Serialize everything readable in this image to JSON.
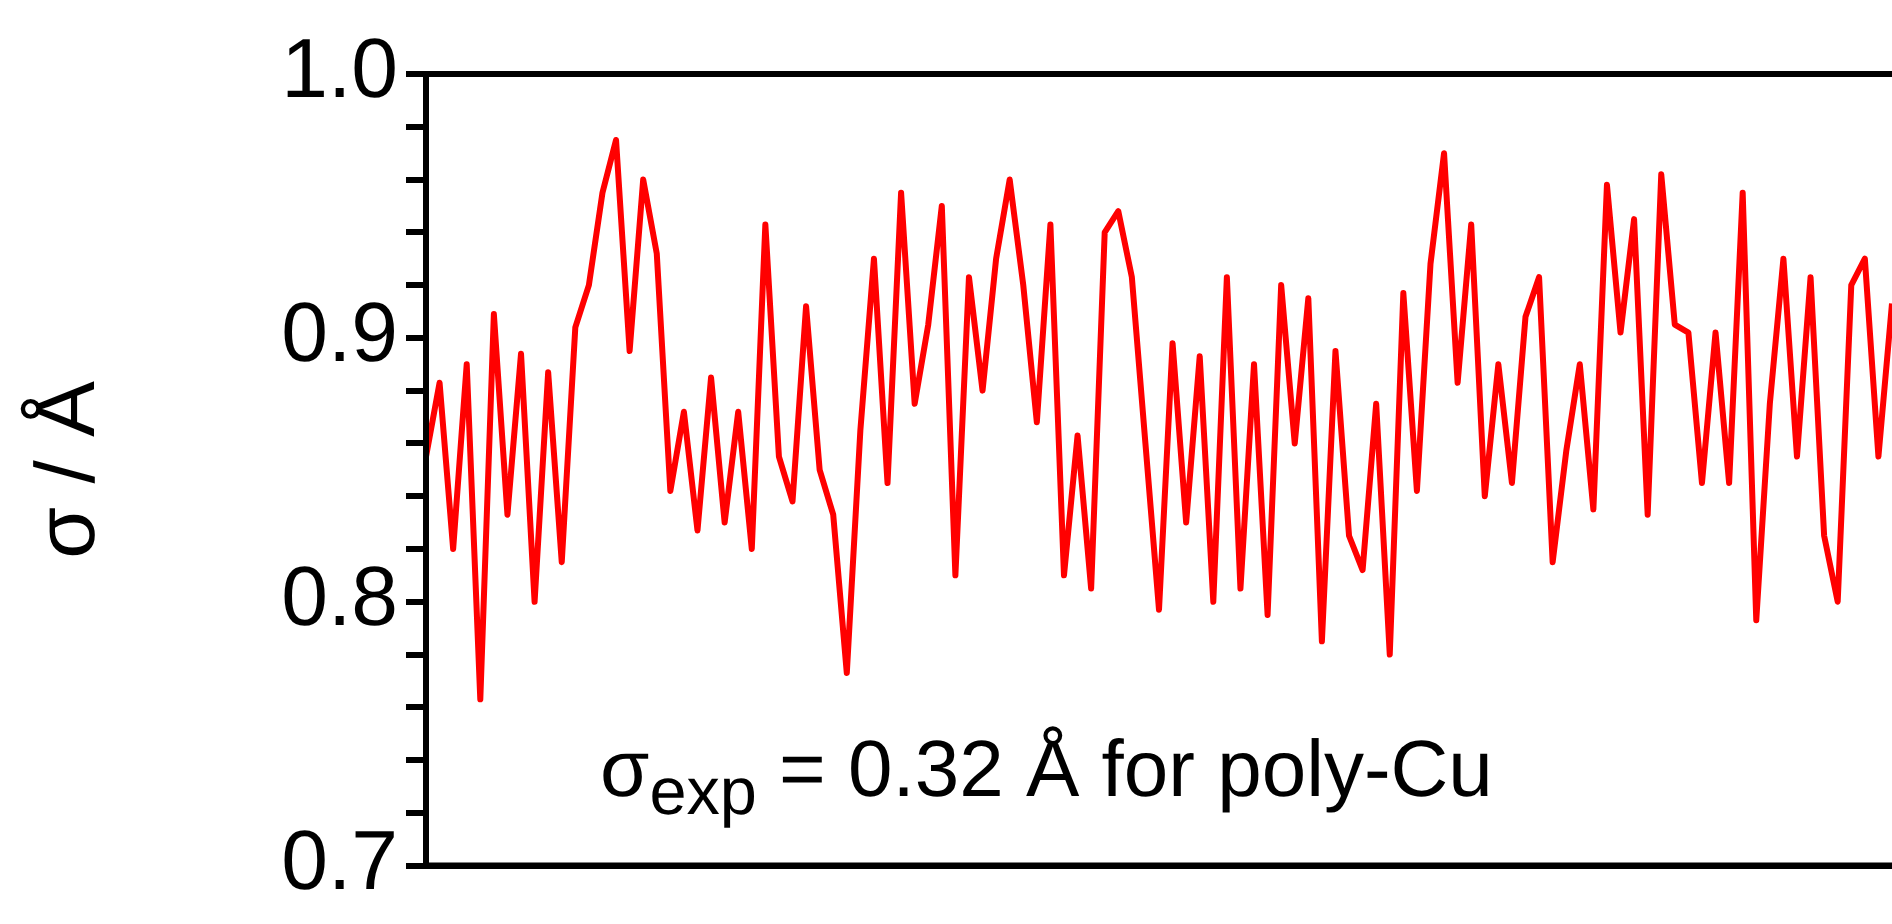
{
  "chart_data": {
    "type": "line",
    "ylabel": "σ / Å",
    "annotations": [
      "σ$_{exp}$ = 0.32 Å for poly-Cu"
    ],
    "categories": [
      null,
      null,
      null,
      null,
      null,
      null,
      null,
      null,
      null,
      null,
      null,
      null,
      null,
      null,
      null,
      null,
      null,
      null,
      null,
      null,
      null,
      null,
      null,
      null,
      null,
      null,
      null,
      null,
      null,
      null,
      null,
      null,
      null,
      null,
      null,
      null,
      null,
      null,
      null,
      null,
      null,
      null,
      null,
      null,
      null,
      null,
      null,
      null,
      null,
      null,
      null,
      null,
      null,
      null,
      null,
      null,
      null,
      null,
      null,
      null,
      null,
      null,
      null,
      null,
      null,
      null,
      null,
      null,
      null,
      null,
      null,
      null,
      null,
      null,
      null,
      null,
      null,
      null,
      null,
      null,
      null,
      null,
      null,
      null,
      null,
      null,
      null,
      null,
      null,
      null,
      null,
      null,
      null,
      null,
      null,
      null,
      null,
      null,
      null,
      null,
      null,
      null,
      null,
      null,
      null,
      null,
      null,
      null,
      null
    ],
    "series": [
      {
        "color": "#ff0000",
        "values": [
          0.855,
          0.883,
          0.82,
          0.89,
          0.763,
          0.909,
          0.833,
          0.894,
          0.8,
          0.887,
          0.815,
          0.904,
          0.92,
          0.955,
          0.975,
          0.895,
          0.96,
          0.932,
          0.842,
          0.872,
          0.827,
          0.885,
          0.83,
          0.872,
          0.82,
          0.943,
          0.855,
          0.838,
          0.912,
          0.85,
          0.833,
          0.773,
          0.865,
          0.93,
          0.845,
          0.955,
          0.875,
          0.905,
          0.95,
          0.81,
          0.923,
          0.88,
          0.93,
          0.96,
          0.92,
          0.868,
          0.943,
          0.81,
          0.863,
          0.805,
          0.94,
          0.948,
          0.923,
          0.86,
          0.797,
          0.898,
          0.83,
          0.893,
          0.8,
          0.923,
          0.805,
          0.89,
          0.795,
          0.92,
          0.86,
          0.915,
          0.785,
          0.895,
          0.825,
          0.812,
          0.875,
          0.78,
          0.917,
          0.842,
          0.928,
          0.97,
          0.883,
          0.943,
          0.84,
          0.89,
          0.845,
          0.908,
          0.923,
          0.815,
          0.857,
          0.89,
          0.835,
          0.958,
          0.902,
          0.945,
          0.833,
          0.962,
          0.905,
          0.902,
          0.845,
          0.902,
          0.845,
          0.955,
          0.793,
          0.875,
          0.93,
          0.855,
          0.923,
          0.825,
          0.8,
          0.92,
          0.93,
          0.855,
          0.913
        ]
      }
    ],
    "ylim": [
      0.7,
      1.0
    ],
    "yticks": [
      0.7,
      {
        "value": 0.72,
        "label": null
      },
      {
        "value": 0.74,
        "label": null
      },
      {
        "value": 0.76,
        "label": null
      },
      {
        "value": 0.78,
        "label": null
      },
      0.8,
      {
        "value": 0.82,
        "label": null
      },
      {
        "value": 0.84,
        "label": null
      },
      {
        "value": 0.86,
        "label": null
      },
      {
        "value": 0.88,
        "label": null
      },
      0.9,
      {
        "value": 0.92,
        "label": null
      },
      {
        "value": 0.94,
        "label": null
      },
      {
        "value": 0.96,
        "label": null
      },
      {
        "value": 0.98,
        "label": null
      },
      {
        "value": 1.0,
        "label": "1.0"
      }
    ],
    "tick_labels": "y",
    "grid": false,
    "legend": false,
    "marker": "none",
    "line_style": "solid"
  }
}
